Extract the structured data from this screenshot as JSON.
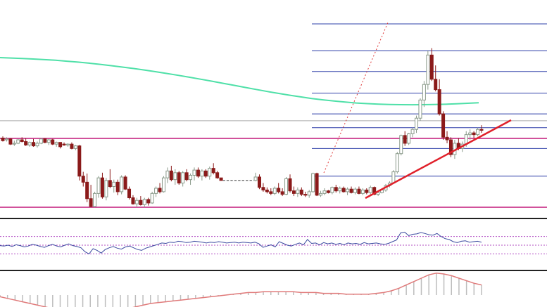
{
  "chart_data": [
    {
      "type": "candlestick",
      "title": "",
      "panel": "price",
      "price_range": [
        0,
        100
      ],
      "colors": {
        "up": "#8a9a8a",
        "up_fill": "#ffffff",
        "down": "#8b1a1a",
        "moving_average": "#4fe0a8",
        "support_lines": "#c2187a",
        "fibonacci_lines": "#2e3fa8",
        "trend_line": "#e0202a",
        "dotted_projection": "#e03a3a",
        "current_price_line": "#aaaaaa"
      },
      "candles": [
        [
          84,
          86,
          80,
          81
        ],
        [
          82,
          85,
          80,
          83
        ],
        [
          83,
          84,
          76,
          77
        ],
        [
          77,
          81,
          75,
          78
        ],
        [
          78,
          83,
          77,
          82
        ],
        [
          82,
          85,
          79,
          80
        ],
        [
          80,
          84,
          75,
          76
        ],
        [
          76,
          80,
          74,
          79
        ],
        [
          79,
          83,
          74,
          75
        ],
        [
          75,
          80,
          73,
          78
        ],
        [
          78,
          84,
          77,
          83
        ],
        [
          83,
          84,
          78,
          79
        ],
        [
          79,
          83,
          76,
          82
        ],
        [
          82,
          83,
          76,
          77
        ],
        [
          77,
          80,
          74,
          79
        ],
        [
          79,
          79,
          72,
          74
        ],
        [
          77,
          79,
          75,
          76
        ],
        [
          76,
          78,
          74,
          77
        ],
        [
          77,
          79,
          71,
          72
        ],
        [
          72,
          76,
          70,
          75
        ],
        [
          75,
          76,
          35,
          40
        ],
        [
          40,
          45,
          28,
          33
        ],
        [
          33,
          43,
          10,
          14
        ],
        [
          14,
          30,
          4,
          5
        ],
        [
          5,
          22,
          4,
          20
        ],
        [
          20,
          40,
          15,
          38
        ],
        [
          38,
          44,
          14,
          16
        ],
        [
          16,
          38,
          12,
          35
        ],
        [
          35,
          48,
          26,
          28
        ],
        [
          28,
          36,
          21,
          33
        ],
        [
          33,
          36,
          18,
          22
        ],
        [
          22,
          41,
          19,
          39
        ],
        [
          39,
          41,
          24,
          25
        ],
        [
          25,
          28,
          13,
          15
        ],
        [
          15,
          18,
          7,
          8
        ],
        [
          8,
          15,
          4,
          12
        ],
        [
          12,
          17,
          6,
          7
        ],
        [
          7,
          15,
          4,
          13
        ],
        [
          13,
          15,
          6,
          9
        ],
        [
          9,
          22,
          8,
          20
        ],
        [
          20,
          28,
          16,
          26
        ],
        [
          26,
          32,
          20,
          22
        ],
        [
          22,
          40,
          21,
          38
        ],
        [
          38,
          50,
          32,
          46
        ],
        [
          46,
          52,
          34,
          36
        ],
        [
          36,
          48,
          30,
          44
        ],
        [
          44,
          46,
          30,
          32
        ],
        [
          32,
          46,
          28,
          44
        ],
        [
          44,
          48,
          34,
          36
        ],
        [
          36,
          43,
          30,
          41
        ],
        [
          41,
          50,
          35,
          47
        ],
        [
          47,
          50,
          38,
          40
        ],
        [
          40,
          48,
          35,
          46
        ],
        [
          46,
          48,
          38,
          40
        ],
        [
          40,
          51,
          36,
          49
        ],
        [
          49,
          55,
          42,
          44
        ],
        [
          44,
          46,
          37,
          38
        ],
        [
          38,
          38,
          35,
          35
        ],
        [
          35,
          35,
          35,
          35
        ],
        [
          35,
          35,
          35,
          35
        ],
        [
          35,
          35,
          35,
          35
        ],
        [
          35,
          35,
          35,
          35
        ],
        [
          35,
          35,
          35,
          35
        ],
        [
          35,
          35,
          35,
          35
        ],
        [
          35,
          35,
          35,
          35
        ],
        [
          35,
          35,
          35,
          35
        ],
        [
          35,
          44,
          34,
          39
        ],
        [
          39,
          42,
          25,
          27
        ],
        [
          27,
          32,
          22,
          24
        ],
        [
          24,
          27,
          20,
          22
        ],
        [
          22,
          26,
          18,
          20
        ],
        [
          20,
          28,
          18,
          26
        ],
        [
          26,
          32,
          20,
          22
        ],
        [
          22,
          26,
          17,
          19
        ],
        [
          19,
          39,
          18,
          37
        ],
        [
          37,
          42,
          21,
          23
        ],
        [
          23,
          28,
          17,
          20
        ],
        [
          20,
          27,
          16,
          24
        ],
        [
          24,
          27,
          17,
          19
        ],
        [
          19,
          22,
          16,
          18
        ],
        [
          18,
          24,
          15,
          22
        ],
        [
          22,
          44,
          21,
          43
        ],
        [
          43,
          44,
          17,
          18
        ],
        [
          18,
          23,
          16,
          20
        ],
        [
          20,
          26,
          18,
          23
        ],
        [
          23,
          24,
          20,
          21
        ],
        [
          21,
          28,
          19,
          27
        ],
        [
          27,
          30,
          21,
          23
        ],
        [
          23,
          28,
          20,
          26
        ],
        [
          26,
          28,
          21,
          22
        ],
        [
          22,
          27,
          18,
          25
        ],
        [
          25,
          28,
          20,
          21
        ],
        [
          21,
          27,
          19,
          25
        ],
        [
          25,
          28,
          19,
          20
        ],
        [
          20,
          26,
          18,
          24
        ],
        [
          24,
          26,
          19,
          21
        ],
        [
          21,
          29,
          19,
          27
        ],
        [
          27,
          28,
          18,
          19
        ],
        [
          19,
          23,
          17,
          21
        ],
        [
          21,
          26,
          20,
          24
        ],
        [
          24,
          31,
          22,
          29
        ],
        [
          29,
          34,
          27,
          32
        ],
        [
          32,
          47,
          31,
          45
        ],
        [
          45,
          68,
          43,
          66
        ],
        [
          66,
          88,
          64,
          87
        ],
        [
          87,
          92,
          75,
          78
        ],
        [
          78,
          90,
          76,
          89
        ],
        [
          89,
          96,
          85,
          94
        ],
        [
          94,
          110,
          90,
          107
        ],
        [
          107,
          130,
          104,
          128
        ],
        [
          128,
          150,
          120,
          146
        ],
        [
          146,
          185,
          140,
          180
        ],
        [
          180,
          188,
          150,
          152
        ],
        [
          152,
          168,
          138,
          140
        ],
        [
          140,
          152,
          110,
          112
        ],
        [
          112,
          115,
          82,
          85
        ],
        [
          85,
          92,
          78,
          82
        ],
        [
          82,
          85,
          62,
          65
        ],
        [
          65,
          82,
          60,
          78
        ],
        [
          78,
          84,
          70,
          72
        ],
        [
          72,
          80,
          68,
          77
        ],
        [
          77,
          92,
          74,
          88
        ],
        [
          88,
          94,
          82,
          90
        ],
        [
          90,
          92,
          84,
          88
        ],
        [
          88,
          96,
          86,
          94
        ],
        [
          94,
          99,
          90,
          93
        ]
      ],
      "moving_average": [
        92,
        91.5,
        91,
        90.4,
        89.7,
        88.9,
        87.9,
        86.8,
        85.6,
        84.2,
        82.7,
        81.1,
        79.4,
        77.6,
        75.7,
        73.7,
        71.6,
        69.4,
        67.1,
        64.8,
        62.4,
        60.0,
        57.6,
        55.2,
        52.9,
        50.7,
        48.6,
        46.6,
        44.8,
        43.2,
        41.8,
        40.6,
        39.6,
        38.8,
        38.2,
        37.8,
        37.6,
        37.5,
        37.6,
        37.8,
        38.1,
        38.6,
        39.2,
        39.9
      ],
      "support_levels": [
        49.5,
        5,
        27,
        96
      ],
      "fibonacci_levels": [
        216,
        185,
        161,
        136,
        112,
        96,
        72,
        40
      ],
      "trend_line": {
        "from": [
          105,
          27
        ],
        "to": [
          145,
          100
        ]
      },
      "dotted_projection": {
        "from": [
          96,
          58
        ],
        "to": [
          110,
          210
        ]
      },
      "current_price": 104
    },
    {
      "type": "line",
      "panel": "oscillator",
      "range": [
        0,
        100
      ],
      "color": "#3b4aa0",
      "upper_band": 70,
      "lower_band": 30,
      "band_color": "#b14cc2",
      "values": [
        49,
        48,
        50,
        47,
        51,
        49,
        46,
        48,
        52,
        50,
        47,
        45,
        49,
        52,
        48,
        46,
        50,
        53,
        49,
        47,
        44,
        35,
        30,
        42,
        38,
        32,
        40,
        44,
        47,
        43,
        41,
        46,
        48,
        44,
        40,
        38,
        43,
        46,
        49,
        52,
        55,
        54,
        57,
        56,
        59,
        58,
        56,
        57,
        59,
        58,
        57,
        55,
        57,
        56,
        58,
        57,
        55,
        56,
        57,
        55,
        57,
        56,
        55,
        57,
        53,
        45,
        48,
        51,
        46,
        58,
        54,
        50,
        48,
        52,
        55,
        51,
        63,
        54,
        55,
        51,
        56,
        53,
        55,
        52,
        54,
        51,
        55,
        53,
        54,
        52,
        56,
        53,
        54,
        55,
        53,
        52,
        54,
        58,
        62,
        78,
        80,
        72,
        75,
        76,
        79,
        77,
        74,
        73,
        77,
        70,
        65,
        63,
        58,
        56,
        59,
        60,
        57,
        58,
        59,
        57
      ]
    },
    {
      "type": "area",
      "panel": "momentum",
      "color": "#e07a7a",
      "bar_color": "#bdbdbd",
      "values": [
        -2,
        -4,
        -6,
        -8,
        -10,
        -12,
        -14,
        -16,
        -17,
        -18,
        -19,
        -20,
        -20,
        -20,
        -19,
        -18,
        -17,
        -16,
        -14,
        -12,
        -10,
        -9,
        -8,
        -7,
        -6,
        -5,
        -4,
        -3,
        -2,
        -1,
        0,
        1,
        2,
        3,
        3,
        4,
        4,
        4,
        4,
        4,
        3,
        3,
        3,
        2,
        2,
        2,
        1,
        1,
        1,
        1,
        2,
        3,
        5,
        8,
        12,
        16,
        20,
        24,
        26,
        25,
        23,
        20,
        17,
        14,
        12
      ]
    }
  ]
}
